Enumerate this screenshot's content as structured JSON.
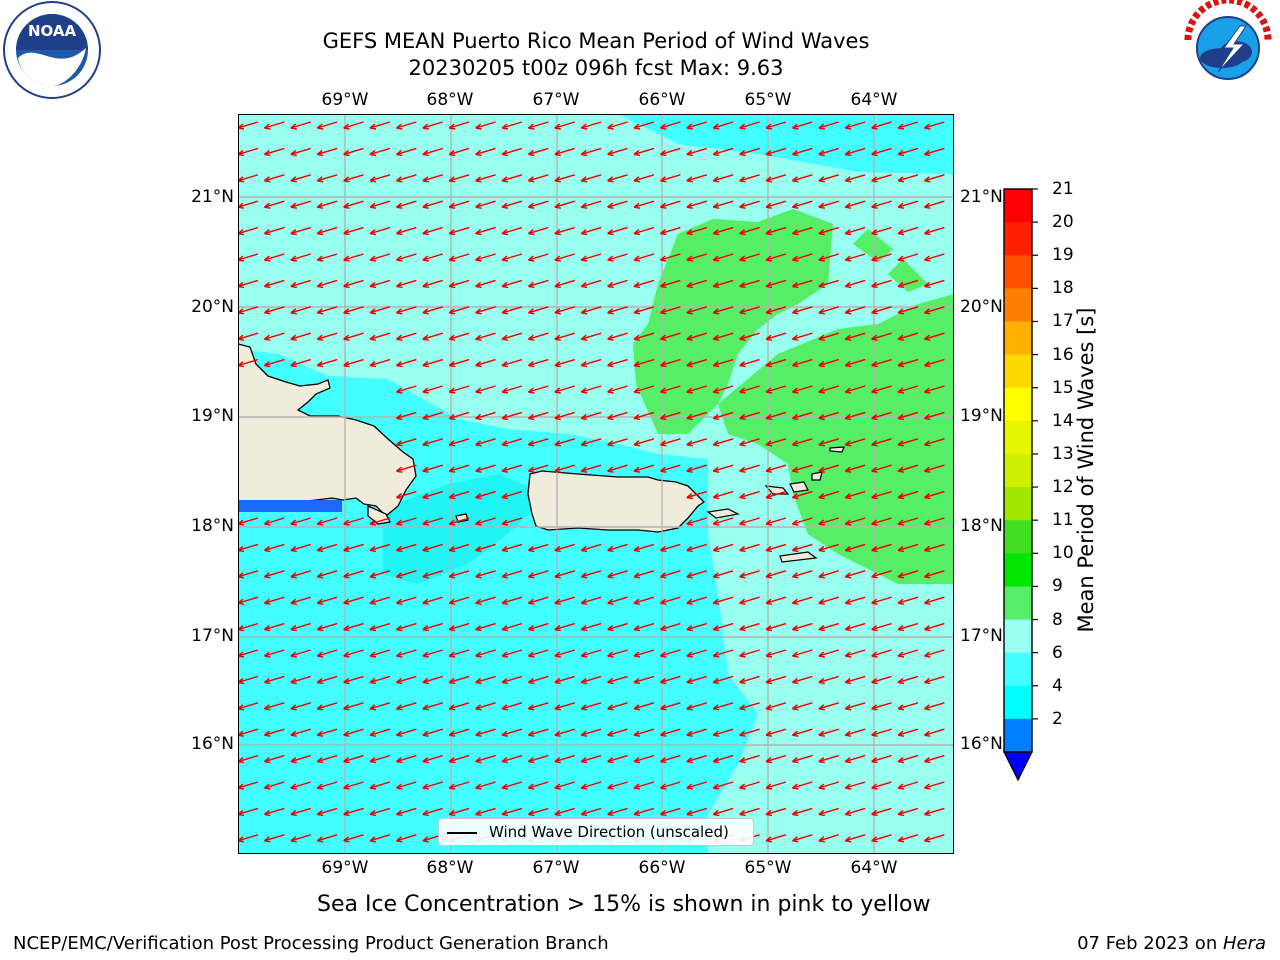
{
  "title": {
    "line1": "GEFS MEAN Puerto Rico Mean Period of Wind Waves",
    "line2": "20230205 t00z 096h fcst   Max: 9.63"
  },
  "logos": {
    "noaa": {
      "text": "NOAA",
      "ring_text": "NATIONAL OCEANIC AND ATMOSPHERIC ADMINISTRATION · U.S. DEPARTMENT OF COMMERCE"
    },
    "nws": {
      "ring_text": "NATIONAL WEATHER SERVICE"
    }
  },
  "map": {
    "lon_labels": [
      "69°W",
      "68°W",
      "67°W",
      "66°W",
      "65°W",
      "64°W"
    ],
    "lat_labels": [
      "21°N",
      "20°N",
      "19°N",
      "18°N",
      "17°N",
      "16°N"
    ],
    "land_color": "#f0ecdc",
    "arrow_color": "#ee0000",
    "legend_label": "Wind Wave Direction (unscaled)"
  },
  "colorbar": {
    "label": "Mean Period of Wind Waves [s]",
    "ticks": [
      "21",
      "20",
      "19",
      "18",
      "17",
      "16",
      "15",
      "14",
      "13",
      "12",
      "11",
      "10",
      "9",
      "8",
      "6",
      "4",
      "2"
    ],
    "colors_top_to_bottom": [
      "#ff0000",
      "#ff2000",
      "#ff5000",
      "#ff8000",
      "#ffb000",
      "#ffd800",
      "#ffff00",
      "#e6f500",
      "#d0f000",
      "#a0e800",
      "#40e020",
      "#00e600",
      "#55ee66",
      "#99ffee",
      "#44ffff",
      "#00ffff",
      "#0080ff"
    ],
    "under_color": "#0000ff"
  },
  "note": "Sea Ice Concentration > 15% is shown in pink to yellow",
  "footer": {
    "left": "NCEP/EMC/Verification Post Processing Product Generation Branch",
    "right_prefix": "07 Feb 2023 on ",
    "right_host": "Hera"
  }
}
